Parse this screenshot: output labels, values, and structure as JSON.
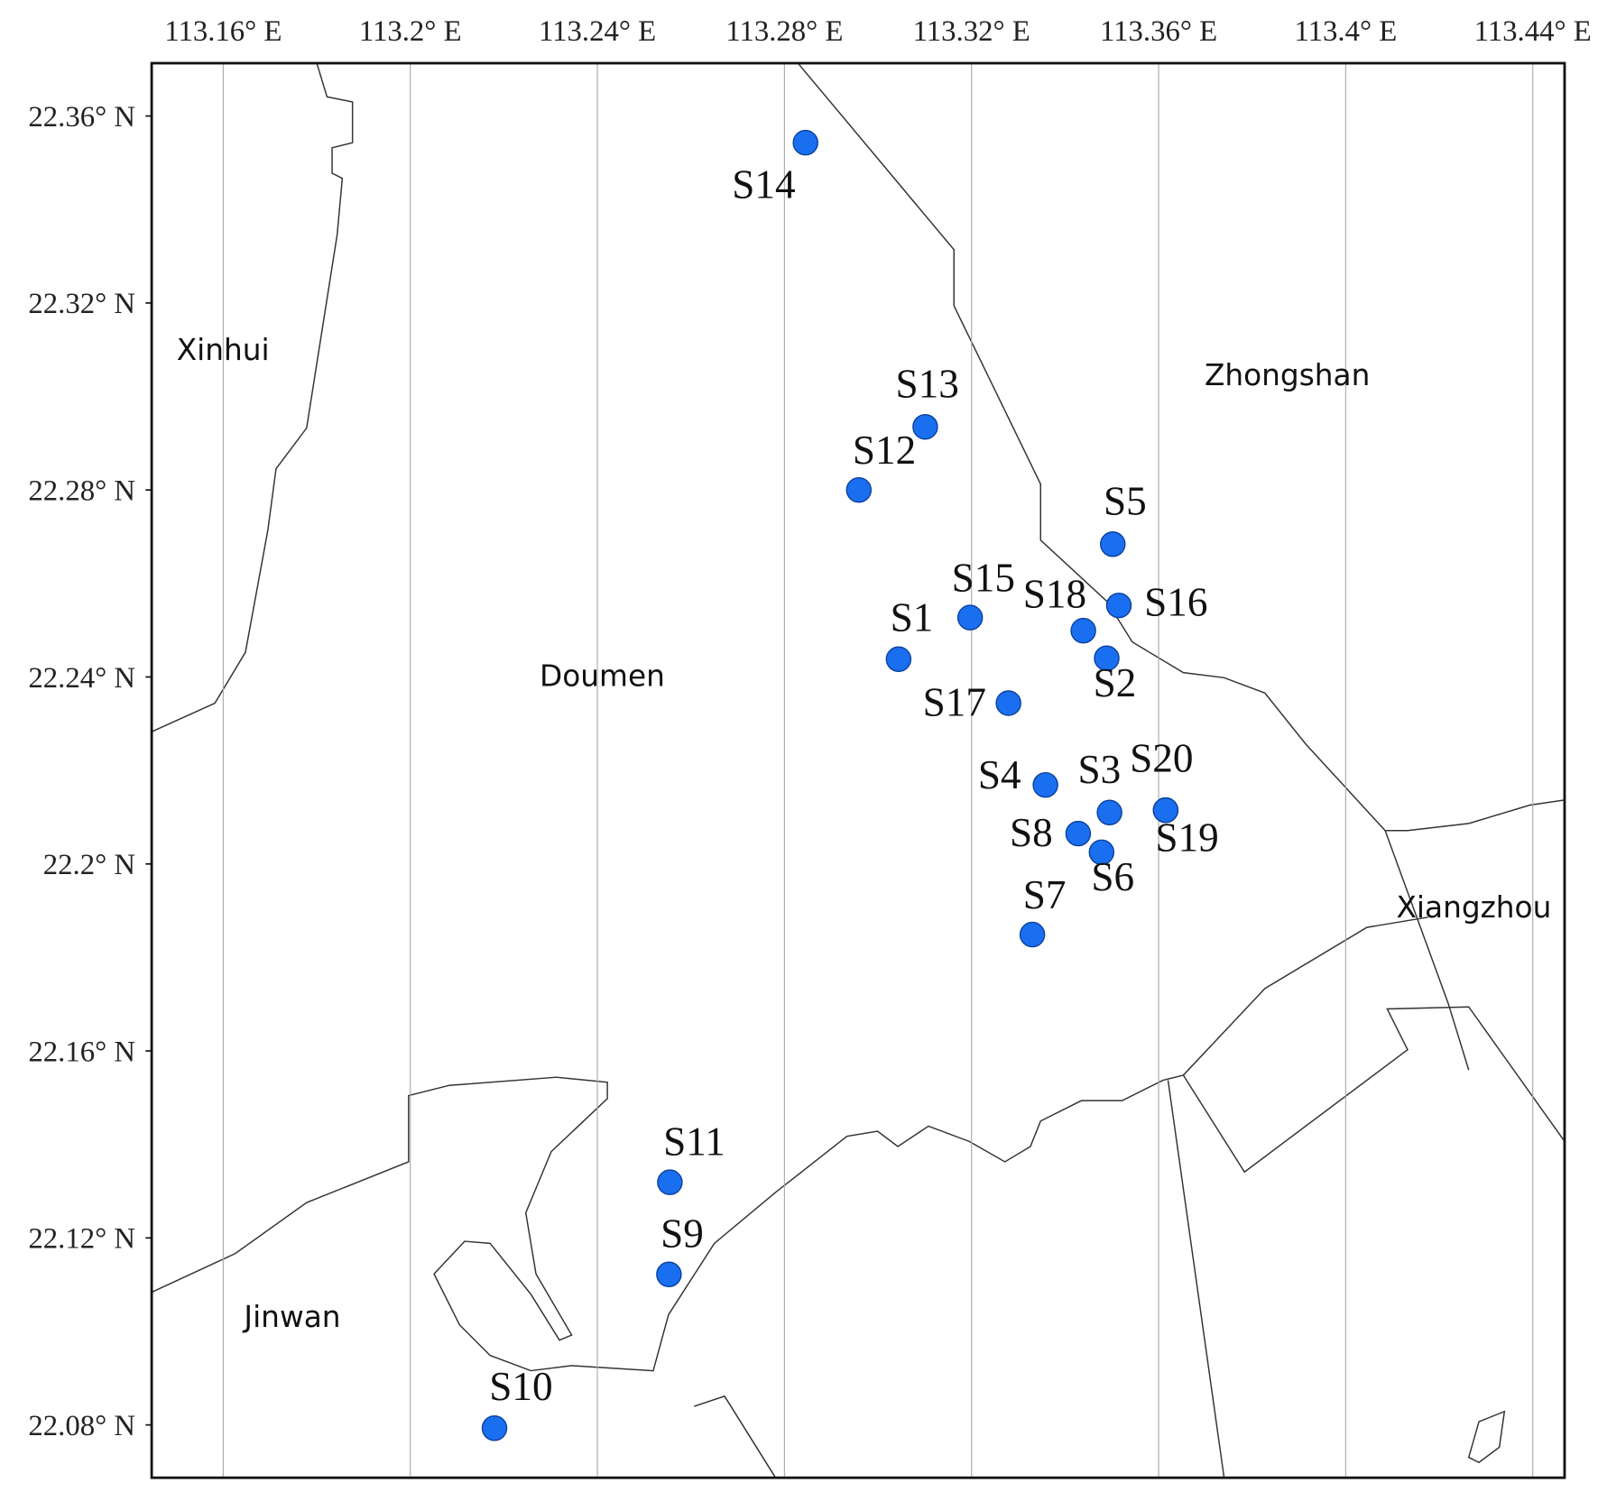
{
  "chart_data": {
    "type": "scatter",
    "color": "#1a6ff0",
    "labels": [
      "S1",
      "S2",
      "S3",
      "S4",
      "S5",
      "S6",
      "S7",
      "S8",
      "S9",
      "S10",
      "S11",
      "S12",
      "S13",
      "S14",
      "S15",
      "S16",
      "S17",
      "S18",
      "S19",
      "S20"
    ],
    "x": [
      113.3044,
      113.3489,
      113.3495,
      113.3358,
      113.3502,
      113.3478,
      113.333,
      113.3428,
      113.2553,
      113.218,
      113.2555,
      113.2959,
      113.3101,
      113.2845,
      113.3197,
      113.3515,
      113.3279,
      113.3439,
      113.3615,
      113.3615
    ],
    "y": [
      22.2438,
      22.244,
      22.211,
      22.2169,
      22.2684,
      22.2025,
      22.1849,
      22.2065,
      22.1122,
      22.0793,
      22.1319,
      22.28,
      22.2935,
      22.3543,
      22.2527,
      22.2553,
      22.2344,
      22.2499,
      22.2115,
      22.2115
    ],
    "xlim": [
      113.1447,
      113.4468
    ],
    "ylim": [
      22.0687,
      22.3713
    ],
    "xticks": [
      {
        "value": 113.16,
        "label": "113.16° E"
      },
      {
        "value": 113.2,
        "label": "113.2° E"
      },
      {
        "value": 113.24,
        "label": "113.24° E"
      },
      {
        "value": 113.28,
        "label": "113.28° E"
      },
      {
        "value": 113.32,
        "label": "113.32° E"
      },
      {
        "value": 113.36,
        "label": "113.36° E"
      },
      {
        "value": 113.4,
        "label": "113.4° E"
      },
      {
        "value": 113.44,
        "label": "113.44° E"
      }
    ],
    "yticks": [
      {
        "value": 22.08,
        "label": "22.08° N"
      },
      {
        "value": 22.12,
        "label": "22.12° N"
      },
      {
        "value": 22.16,
        "label": "22.16° N"
      },
      {
        "value": 22.2,
        "label": "22.2° N"
      },
      {
        "value": 22.24,
        "label": "22.24° N"
      },
      {
        "value": 22.28,
        "label": "22.28° N"
      },
      {
        "value": 22.32,
        "label": "22.32° N"
      },
      {
        "value": 22.36,
        "label": "22.36° N"
      }
    ],
    "grid": true,
    "regions": [
      "Xinhui",
      "Zhongshan",
      "Doumen",
      "Xiangzhou",
      "Jinwan"
    ]
  }
}
